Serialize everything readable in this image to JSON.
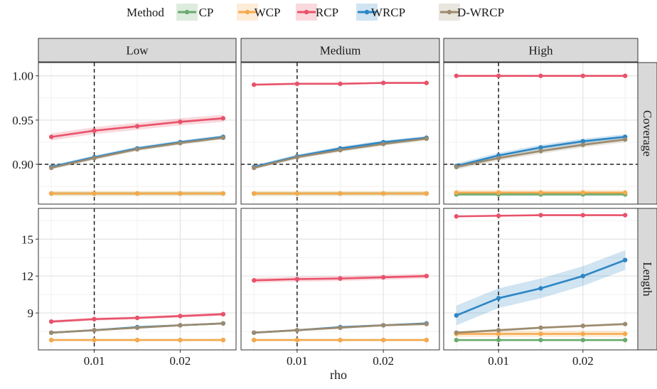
{
  "chart_data": {
    "type": "line",
    "facets": {
      "columns": [
        "Low",
        "Medium",
        "High"
      ],
      "rows": [
        "Coverage",
        "Length"
      ]
    },
    "xlabel": "rho",
    "x": [
      0.005,
      0.01,
      0.015,
      0.02,
      0.025
    ],
    "xticks": [
      0.01,
      0.02
    ],
    "xtick_labels": [
      "0.01",
      "0.02"
    ],
    "xlim": [
      0.0035,
      0.0265
    ],
    "legend": {
      "title": "Method",
      "position": "top",
      "entries": [
        "CP",
        "WCP",
        "RCP",
        "WRCP",
        "D-WRCP"
      ]
    },
    "colors": {
      "CP": "#6aaa6e",
      "WCP": "#f5a94d",
      "RCP": "#e8526a",
      "WRCP": "#2b86c5",
      "D-WRCP": "#9c8b6e"
    },
    "grid": true,
    "reference_lines": {
      "vertical_x": 0.01,
      "coverage_horizontal_y": 0.9
    },
    "rows_axes": {
      "Coverage": {
        "ylim": [
          0.855,
          1.015
        ],
        "yticks": [
          0.9,
          0.95,
          1.0
        ],
        "ytick_labels": [
          "0.90",
          "0.95",
          "1.00"
        ]
      },
      "Length": {
        "ylim": [
          6.0,
          17.5
        ],
        "yticks": [
          9,
          12,
          15
        ],
        "ytick_labels": [
          "9",
          "12",
          "15"
        ]
      }
    },
    "panels": [
      {
        "row": "Coverage",
        "col": "Low",
        "series": [
          {
            "name": "CP",
            "values": [
              0.867,
              0.867,
              0.867,
              0.867,
              0.867
            ],
            "band": 0.002
          },
          {
            "name": "WCP",
            "values": [
              0.867,
              0.867,
              0.867,
              0.867,
              0.867
            ],
            "band": 0.003
          },
          {
            "name": "RCP",
            "values": [
              0.931,
              0.938,
              0.943,
              0.948,
              0.952
            ],
            "band": 0.004
          },
          {
            "name": "WRCP",
            "values": [
              0.897,
              0.908,
              0.918,
              0.925,
              0.931
            ],
            "band": 0.002
          },
          {
            "name": "D-WRCP",
            "values": [
              0.896,
              0.907,
              0.917,
              0.924,
              0.93
            ],
            "band": 0.002
          }
        ]
      },
      {
        "row": "Coverage",
        "col": "Medium",
        "series": [
          {
            "name": "CP",
            "values": [
              0.867,
              0.867,
              0.867,
              0.867,
              0.867
            ],
            "band": 0.002
          },
          {
            "name": "WCP",
            "values": [
              0.867,
              0.867,
              0.867,
              0.867,
              0.867
            ],
            "band": 0.003
          },
          {
            "name": "RCP",
            "values": [
              0.99,
              0.991,
              0.991,
              0.992,
              0.992
            ],
            "band": 0.001
          },
          {
            "name": "WRCP",
            "values": [
              0.897,
              0.909,
              0.918,
              0.925,
              0.93
            ],
            "band": 0.002
          },
          {
            "name": "D-WRCP",
            "values": [
              0.896,
              0.908,
              0.916,
              0.923,
              0.929
            ],
            "band": 0.002
          }
        ]
      },
      {
        "row": "Coverage",
        "col": "High",
        "series": [
          {
            "name": "CP",
            "values": [
              0.866,
              0.866,
              0.866,
              0.866,
              0.866
            ],
            "band": 0.002
          },
          {
            "name": "WCP",
            "values": [
              0.868,
              0.868,
              0.868,
              0.868,
              0.868
            ],
            "band": 0.003
          },
          {
            "name": "RCP",
            "values": [
              1.0,
              1.0,
              1.0,
              1.0,
              1.0
            ],
            "band": 0.0005
          },
          {
            "name": "WRCP",
            "values": [
              0.898,
              0.91,
              0.919,
              0.926,
              0.931
            ],
            "band": 0.003
          },
          {
            "name": "D-WRCP",
            "values": [
              0.897,
              0.907,
              0.915,
              0.922,
              0.928
            ],
            "band": 0.003
          }
        ]
      },
      {
        "row": "Length",
        "col": "Low",
        "series": [
          {
            "name": "CP",
            "values": [
              6.8,
              6.8,
              6.8,
              6.8,
              6.8
            ],
            "band": 0.05
          },
          {
            "name": "WCP",
            "values": [
              6.8,
              6.8,
              6.8,
              6.8,
              6.8
            ],
            "band": 0.08
          },
          {
            "name": "RCP",
            "values": [
              8.3,
              8.5,
              8.6,
              8.75,
              8.9
            ],
            "band": 0.12
          },
          {
            "name": "WRCP",
            "values": [
              7.4,
              7.6,
              7.85,
              8.0,
              8.15
            ],
            "band": 0.08
          },
          {
            "name": "D-WRCP",
            "values": [
              7.4,
              7.6,
              7.8,
              8.0,
              8.15
            ],
            "band": 0.08
          }
        ]
      },
      {
        "row": "Length",
        "col": "Medium",
        "series": [
          {
            "name": "CP",
            "values": [
              6.8,
              6.8,
              6.8,
              6.8,
              6.8
            ],
            "band": 0.05
          },
          {
            "name": "WCP",
            "values": [
              6.8,
              6.8,
              6.8,
              6.8,
              6.8
            ],
            "band": 0.08
          },
          {
            "name": "RCP",
            "values": [
              11.65,
              11.75,
              11.8,
              11.9,
              12.0
            ],
            "band": 0.2
          },
          {
            "name": "WRCP",
            "values": [
              7.4,
              7.6,
              7.85,
              8.0,
              8.15
            ],
            "band": 0.08
          },
          {
            "name": "D-WRCP",
            "values": [
              7.4,
              7.6,
              7.8,
              8.0,
              8.1
            ],
            "band": 0.08
          }
        ]
      },
      {
        "row": "Length",
        "col": "High",
        "series": [
          {
            "name": "CP",
            "values": [
              6.8,
              6.8,
              6.8,
              6.8,
              6.8
            ],
            "band": 0.05
          },
          {
            "name": "WCP",
            "values": [
              7.3,
              7.3,
              7.3,
              7.3,
              7.3
            ],
            "band": 0.25
          },
          {
            "name": "RCP",
            "values": [
              16.85,
              16.9,
              16.95,
              16.95,
              16.95
            ],
            "band": 0.05
          },
          {
            "name": "WRCP",
            "values": [
              8.8,
              10.2,
              11.0,
              12.0,
              13.3
            ],
            "band": 0.8
          },
          {
            "name": "D-WRCP",
            "values": [
              7.4,
              7.6,
              7.8,
              7.95,
              8.1
            ],
            "band": 0.1
          }
        ]
      }
    ]
  }
}
